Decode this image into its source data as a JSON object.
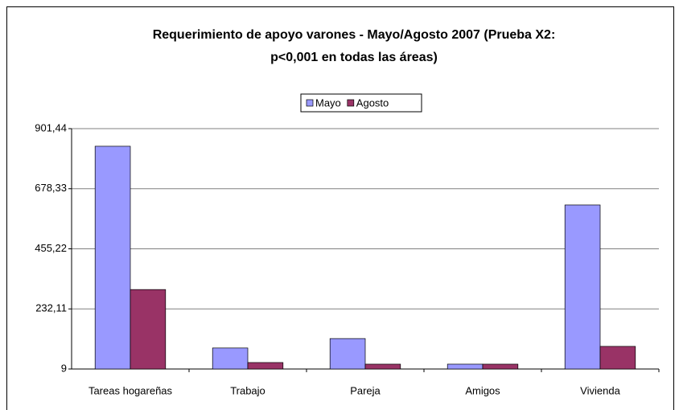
{
  "chart_data": {
    "type": "bar",
    "title": [
      "Requerimiento de apoyo varones -  Mayo/Agosto 2007 (Prueba X2:",
      "p<0,001 en todas las áreas)"
    ],
    "categories": [
      "Tareas hogareñas",
      "Trabajo",
      "Pareja",
      "Amigos",
      "Vivienda"
    ],
    "series": [
      {
        "name": "Mayo",
        "color": "#9999ff",
        "values": [
          836,
          87,
          122,
          27,
          618
        ]
      },
      {
        "name": "Agosto",
        "color": "#993366",
        "values": [
          304,
          33,
          27,
          27,
          93
        ]
      }
    ],
    "ylim": [
      9,
      901.44
    ],
    "yticks": [
      9,
      {
        "value": 232.11,
        "label": "232,11"
      },
      {
        "value": 455.22,
        "label": "455,22"
      },
      {
        "value": 678.33,
        "label": "678,33"
      },
      {
        "value": 901.44,
        "label": "901,44"
      }
    ],
    "grid": true,
    "legend": "top"
  }
}
